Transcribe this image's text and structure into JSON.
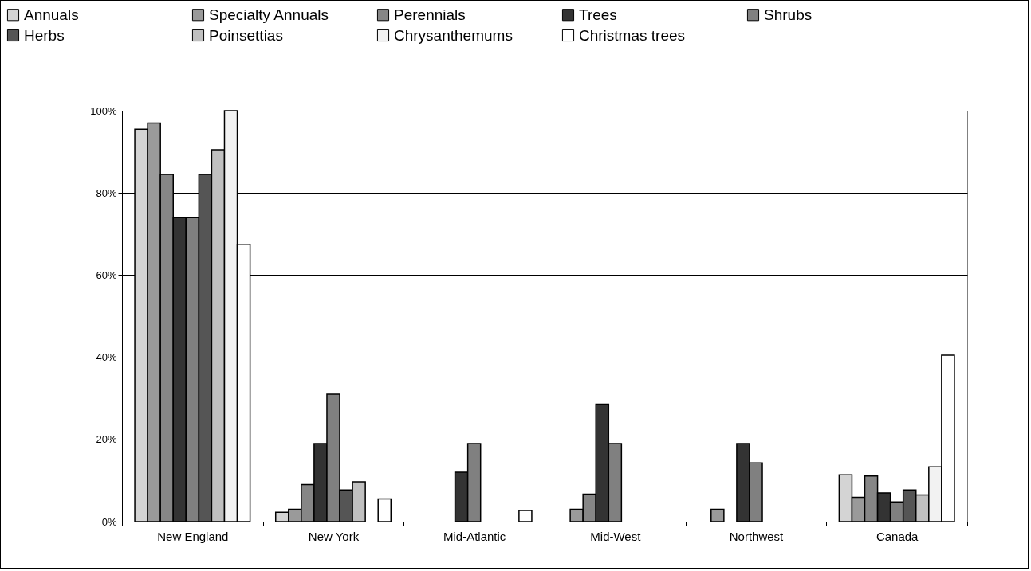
{
  "chart_data": {
    "type": "bar",
    "categories": [
      "New England",
      "New York",
      "Mid-Atlantic",
      "Mid-West",
      "Northwest",
      "Canada"
    ],
    "series": [
      {
        "name": "Annuals",
        "color": "#d4d4d4",
        "values": [
          95.5,
          2.3,
          null,
          null,
          null,
          11.4
        ]
      },
      {
        "name": "Specialty Annuals",
        "color": "#9a9a9a",
        "values": [
          97,
          3,
          null,
          3,
          3,
          5.9
        ]
      },
      {
        "name": "Perennials",
        "color": "#868686",
        "values": [
          84.5,
          9,
          null,
          6.7,
          null,
          11.1
        ]
      },
      {
        "name": "Trees",
        "color": "#333333",
        "values": [
          74,
          19,
          12,
          28.6,
          19,
          7
        ]
      },
      {
        "name": "Shrubs",
        "color": "#808080",
        "values": [
          74,
          31,
          19,
          19,
          14.3,
          4.8
        ]
      },
      {
        "name": "Herbs",
        "color": "#555555",
        "values": [
          84.5,
          7.7,
          null,
          null,
          null,
          7.7
        ]
      },
      {
        "name": "Poinsettias",
        "color": "#c0c0c0",
        "values": [
          90.5,
          9.7,
          null,
          null,
          null,
          6.5
        ]
      },
      {
        "name": "Chrysanthemums",
        "color": "#f2f2f2",
        "values": [
          100,
          null,
          null,
          null,
          null,
          13.3
        ]
      },
      {
        "name": "Christmas trees",
        "color": "#ffffff",
        "values": [
          67.5,
          5.5,
          2.7,
          null,
          null,
          40.5
        ]
      }
    ],
    "ylim": [
      0,
      100
    ],
    "yticks": [
      {
        "value": 0,
        "label": "0%"
      },
      {
        "value": 20,
        "label": "20%"
      },
      {
        "value": 40,
        "label": "40%"
      },
      {
        "value": 60,
        "label": "60%"
      },
      {
        "value": 80,
        "label": "80%"
      },
      {
        "value": 100,
        "label": "100%"
      }
    ],
    "grid": "y",
    "legend": "top"
  }
}
